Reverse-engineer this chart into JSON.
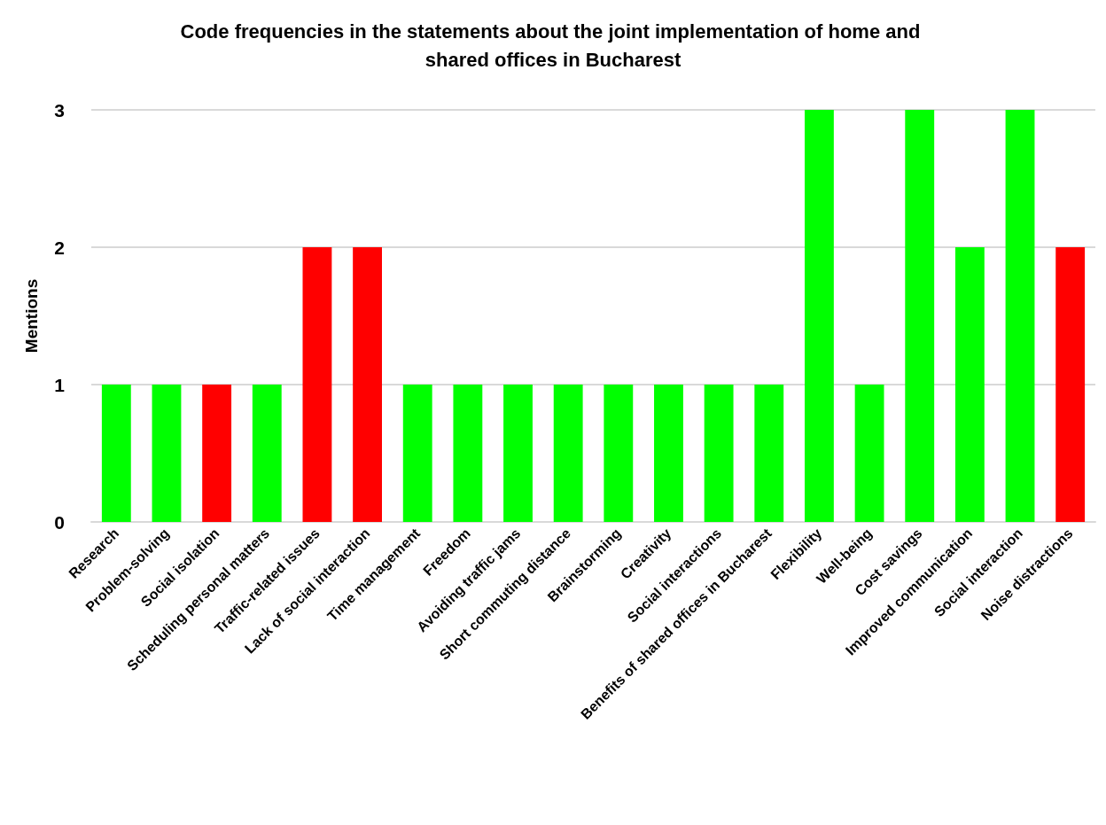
{
  "chart_data": {
    "type": "bar",
    "title": "Code frequencies in the statements about the joint implementation of home and shared offices in Bucharest",
    "ylabel": "Mentions",
    "categories": [
      "Research",
      "Problem-solving",
      "Social isolation",
      "Scheduling personal matters",
      "Traffic-related issues",
      "Lack of social interaction",
      "Time management",
      "Freedom",
      "Avoiding traffic jams",
      "Short commuting distance",
      "Brainstorming",
      "Creativity",
      "Social interactions",
      "Benefits of shared offices in Bucharest",
      "Flexibility",
      "Well-being",
      "Cost savings",
      "Improved communication",
      "Social interaction",
      "Noise distractions"
    ],
    "values": [
      1,
      1,
      1,
      1,
      2,
      2,
      1,
      1,
      1,
      1,
      1,
      1,
      1,
      1,
      3,
      1,
      3,
      2,
      3,
      2
    ],
    "colors": [
      "#00ff00",
      "#00ff00",
      "#ff0000",
      "#00ff00",
      "#ff0000",
      "#ff0000",
      "#00ff00",
      "#00ff00",
      "#00ff00",
      "#00ff00",
      "#00ff00",
      "#00ff00",
      "#00ff00",
      "#00ff00",
      "#00ff00",
      "#00ff00",
      "#00ff00",
      "#00ff00",
      "#00ff00",
      "#ff0000"
    ],
    "ylim": [
      0,
      3
    ],
    "yticks": [
      0,
      1,
      2,
      3
    ],
    "grid": "y"
  }
}
